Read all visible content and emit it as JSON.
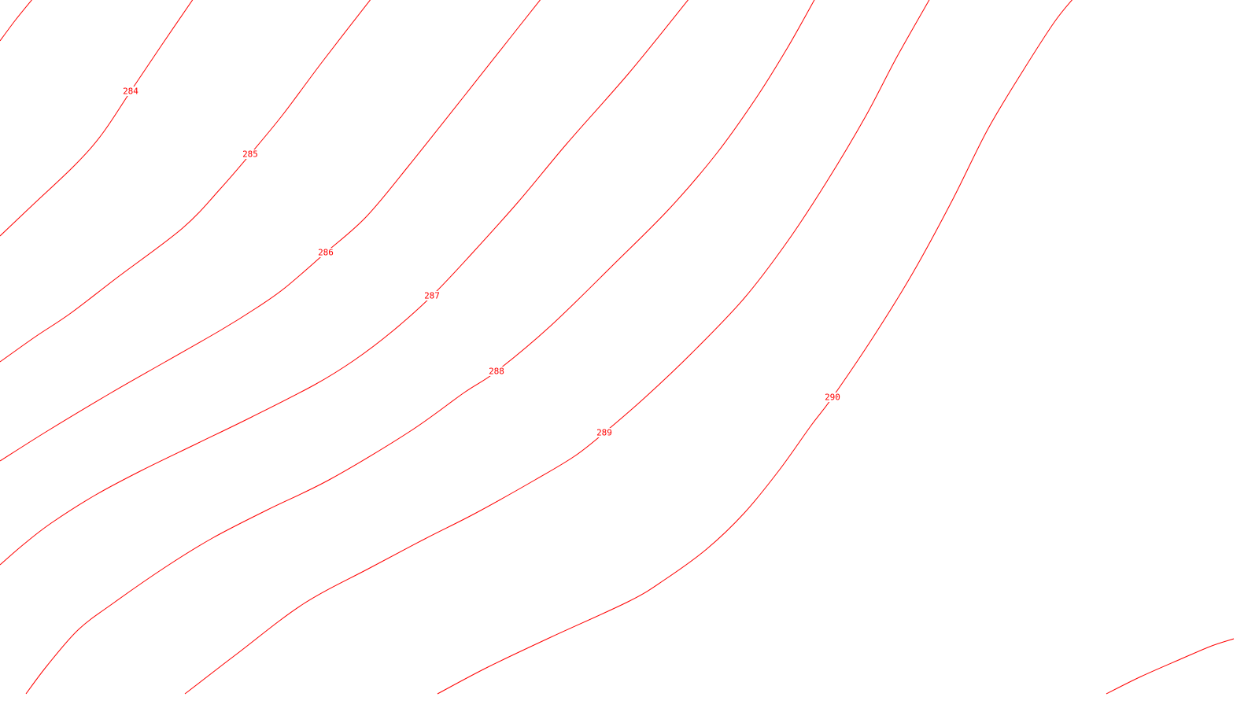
{
  "map": {
    "background_color": "#ffffff",
    "contour_color": "#ff0000",
    "contour_interval": 1,
    "contours": [
      {
        "level": "284",
        "labeled": true
      },
      {
        "level": "285",
        "labeled": true
      },
      {
        "level": "286",
        "labeled": true
      },
      {
        "level": "287",
        "labeled": true
      },
      {
        "level": "288",
        "labeled": true
      },
      {
        "level": "289",
        "labeled": true
      },
      {
        "level": "290",
        "labeled": true
      },
      {
        "level": "",
        "labeled": false
      }
    ]
  }
}
